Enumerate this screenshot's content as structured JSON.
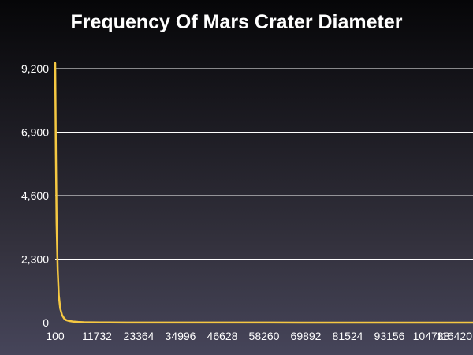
{
  "chart_data": {
    "type": "line",
    "title": "Frequency Of Mars Crater Diameter",
    "xlabel": "",
    "ylabel": "",
    "ylim": [
      0,
      9200
    ],
    "xlim": [
      100,
      116420
    ],
    "yticks": [
      "0",
      "2,300",
      "4,600",
      "6,900",
      "9,200"
    ],
    "yticks_values": [
      0,
      2300,
      4600,
      6900,
      9200
    ],
    "xticks": [
      "100",
      "11732",
      "23364",
      "34996",
      "46628",
      "58260",
      "69892",
      "81524",
      "93156",
      "104788",
      "116420"
    ],
    "xticks_values": [
      100,
      11732,
      23364,
      34996,
      46628,
      58260,
      69892,
      81524,
      93156,
      104788,
      116420
    ],
    "grid": true,
    "legend": "none",
    "colors": {
      "line": "#f5c842",
      "grid": "#ffffff",
      "text": "#ffffff"
    },
    "series": [
      {
        "values": [
          [
            100,
            9400
          ],
          [
            300,
            6100
          ],
          [
            500,
            3600
          ],
          [
            800,
            1900
          ],
          [
            1100,
            1000
          ],
          [
            1500,
            520
          ],
          [
            2000,
            280
          ],
          [
            2600,
            150
          ],
          [
            3200,
            90
          ],
          [
            4000,
            60
          ],
          [
            5000,
            40
          ],
          [
            6500,
            25
          ],
          [
            8000,
            15
          ],
          [
            10000,
            10
          ],
          [
            15000,
            6
          ],
          [
            20000,
            4
          ],
          [
            30000,
            3
          ],
          [
            45000,
            2
          ],
          [
            60000,
            2
          ],
          [
            80000,
            1
          ],
          [
            100000,
            1
          ],
          [
            116420,
            1
          ]
        ]
      }
    ]
  }
}
